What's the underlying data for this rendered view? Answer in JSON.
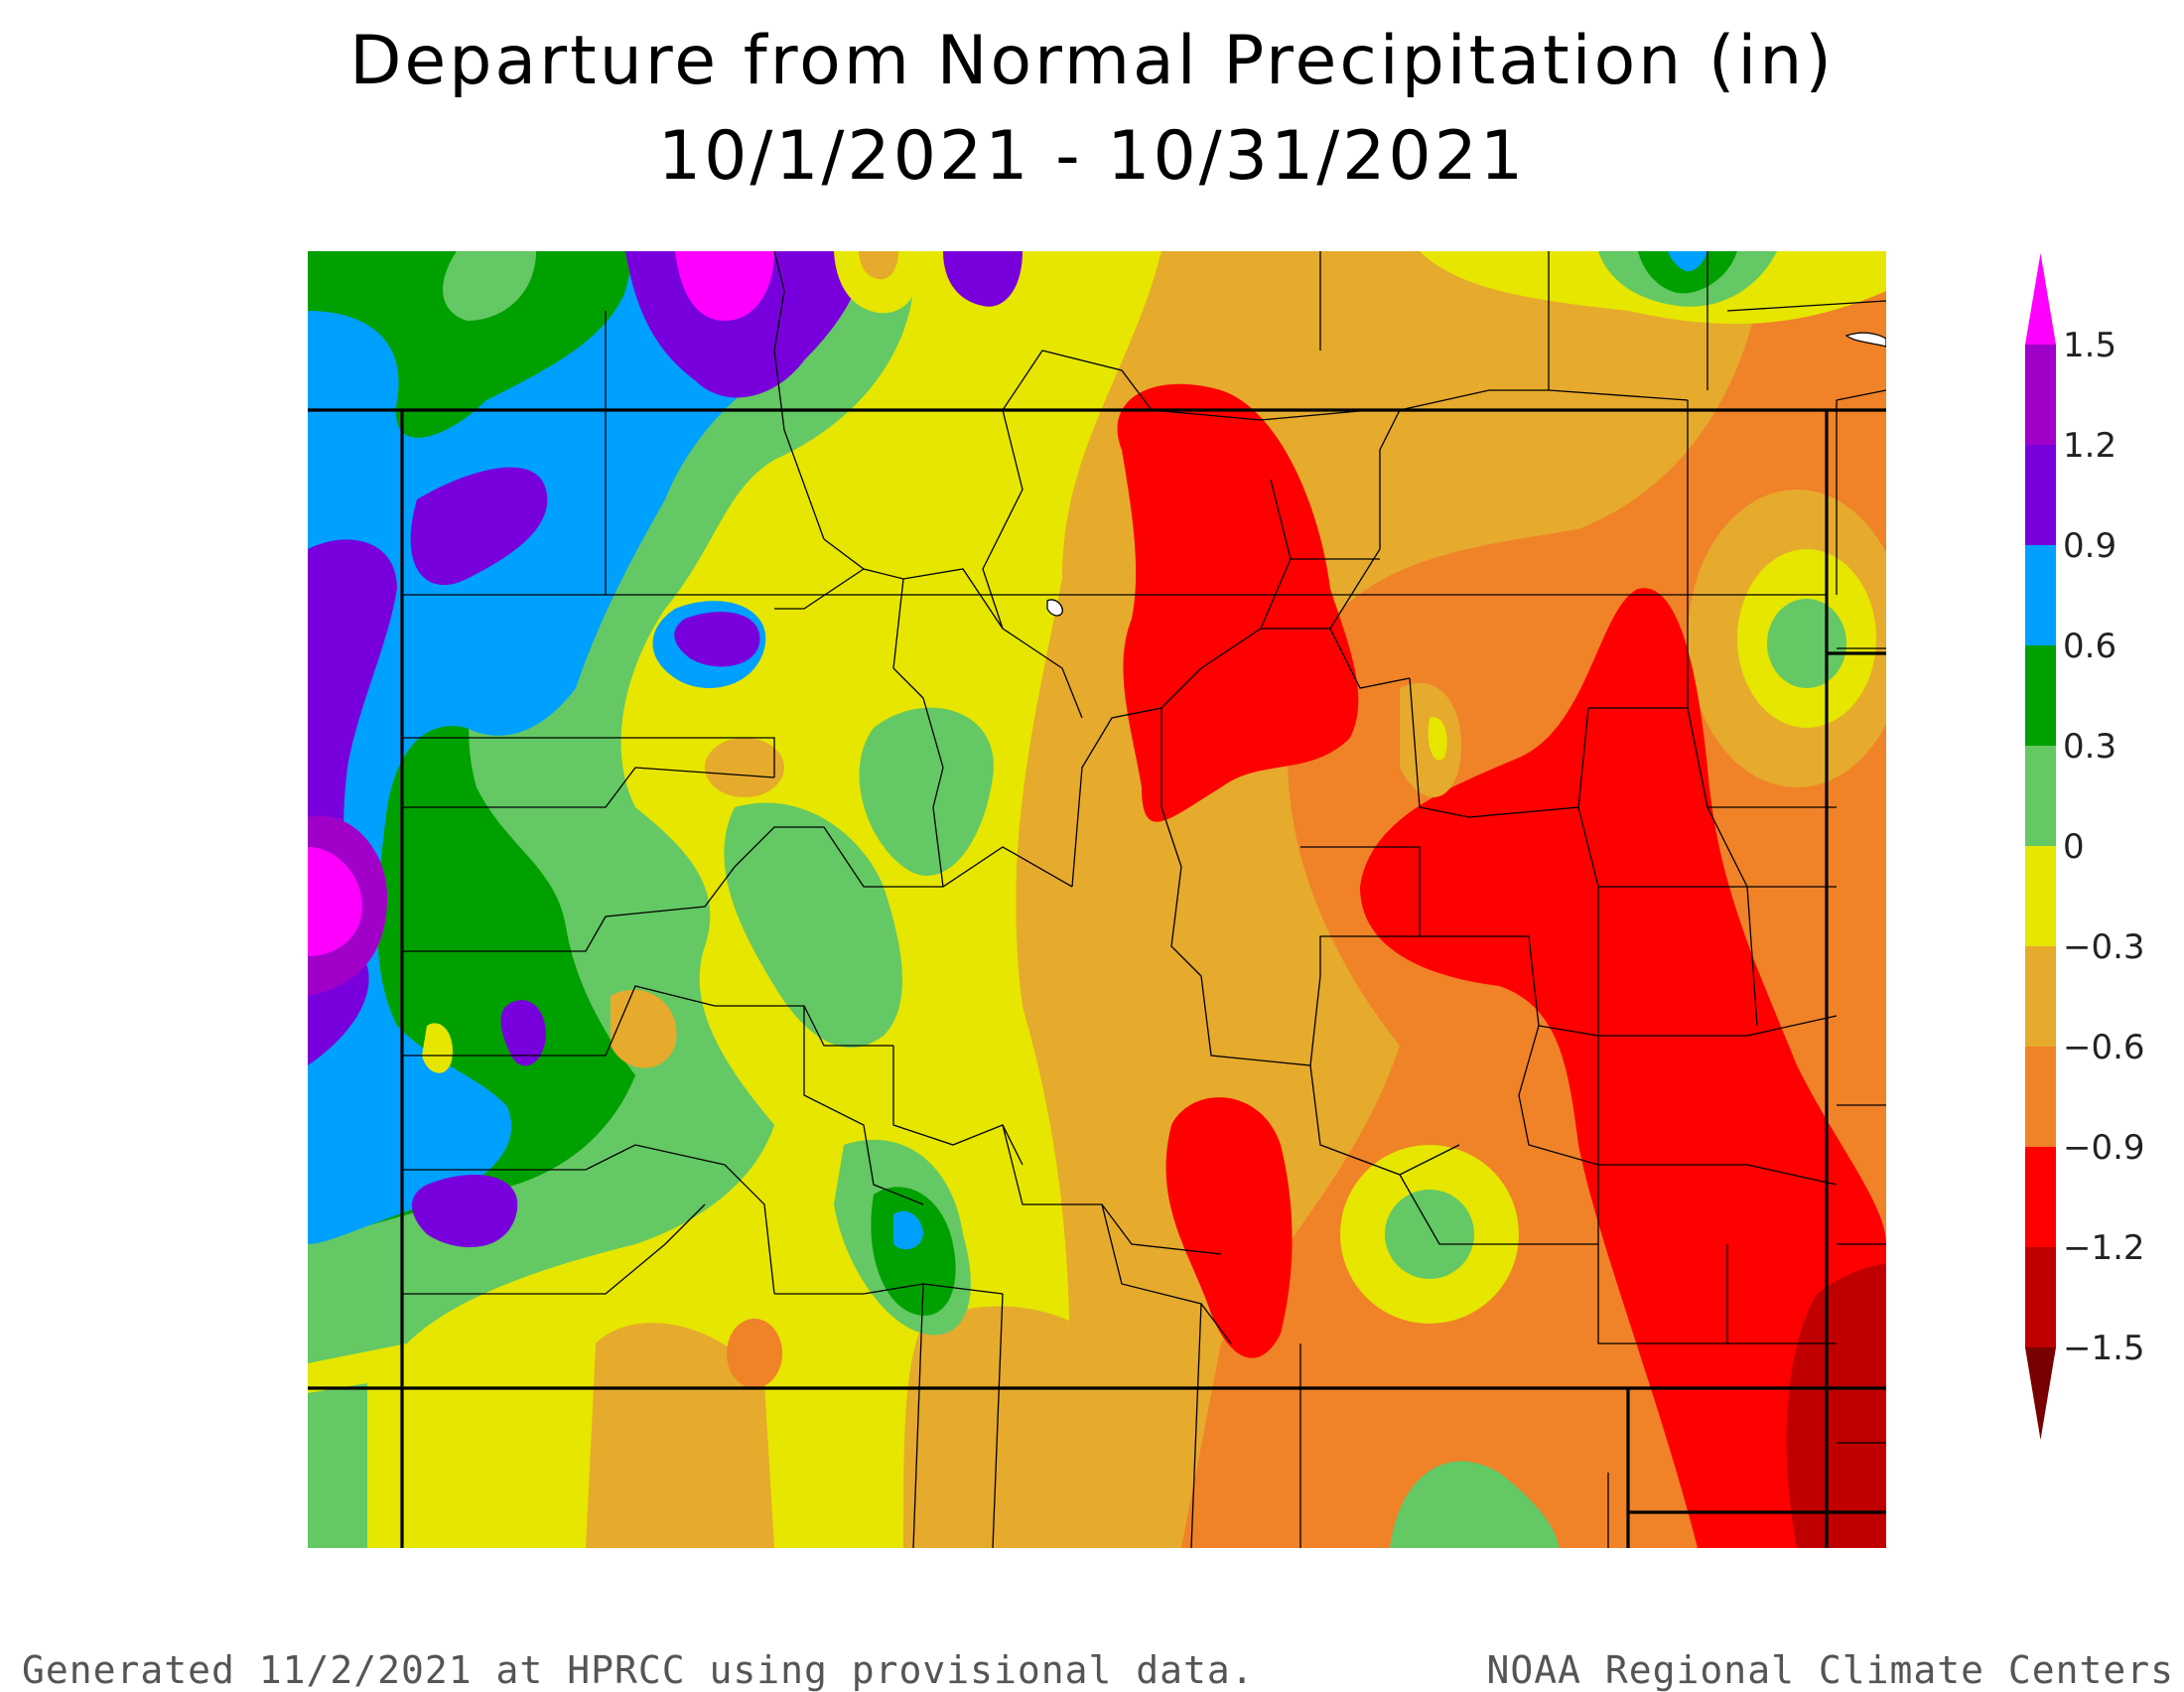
{
  "title_line1": "Departure from Normal Precipitation (in)",
  "title_line2": "10/1/2021 - 10/31/2021",
  "footer_left": "Generated 11/2/2021 at HPRCC using provisional data.",
  "footer_right": "NOAA Regional Climate Centers",
  "legend": {
    "labels": [
      "1.5",
      "1.2",
      "0.9",
      "0.6",
      "0.3",
      "0",
      "−0.3",
      "−0.6",
      "−0.9",
      "−1.2",
      "−1.5"
    ],
    "colors": [
      "#ff00ff",
      "#a000c8",
      "#7800dc",
      "#00a0ff",
      "#00a000",
      "#64c864",
      "#e6e600",
      "#e6aa2d",
      "#f08228",
      "#ff0000",
      "#c00000",
      "#780000"
    ]
  }
}
